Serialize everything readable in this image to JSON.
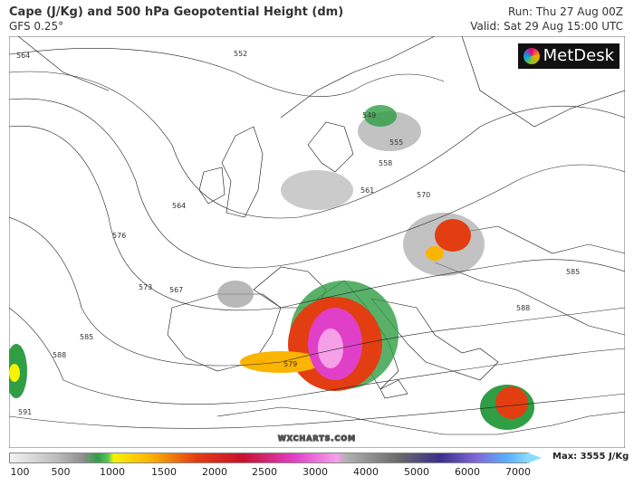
{
  "header": {
    "title": "Cape (J/Kg) and 500 hPa Geopotential Height (dm)",
    "model": "GFS 0.25°",
    "run": "Run: Thu 27 Aug 00Z",
    "valid": "Valid: Sat 29 Aug 15:00 UTC"
  },
  "logo": "MetDesk",
  "watermark": "WXCHARTS.COM",
  "contour_labels": [
    "564",
    "552",
    "549",
    "555",
    "558",
    "561",
    "570",
    "564",
    "576",
    "573",
    "567",
    "585",
    "588",
    "591",
    "579",
    "585",
    "588"
  ],
  "colorbar": {
    "ticks": [
      100,
      500,
      1000,
      1500,
      2000,
      2500,
      3000,
      4000,
      5000,
      6000,
      7000
    ],
    "max_label": "Max: 3555 J/Kg"
  }
}
